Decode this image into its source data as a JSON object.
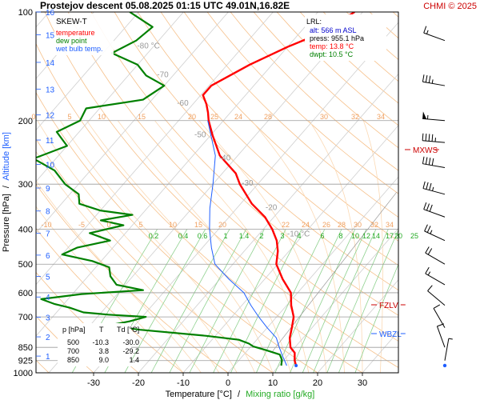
{
  "header": {
    "title": "Prostejov   descent   05.08.2025 01:15 UTC   49.01N,16.82E",
    "credit": "CHMI © 2025"
  },
  "legend": {
    "heading": "SKEW-T",
    "items": [
      {
        "label": "temperature",
        "color": "#ff0000"
      },
      {
        "label": "dew point",
        "color": "#008000"
      },
      {
        "label": "wet bulb temp.",
        "color": "#1f5fff"
      }
    ]
  },
  "lrl_box": {
    "heading": "LRL:",
    "alt": "alt: 566 m ASL",
    "press": "press: 955.1 hPa",
    "temp": "temp: 13.8 °C",
    "dwpt": "dwpt: 10.5 °C",
    "alt_color": "#0000cc",
    "press_color": "#000000",
    "temp_color": "#ff0000",
    "dwpt_color": "#008000"
  },
  "levels": [
    {
      "name": "MXWS",
      "color": "#cc0000"
    },
    {
      "name": "FZLV",
      "color": "#cc0000"
    },
    {
      "name": "WBZL",
      "color": "#1f5fff"
    }
  ],
  "table": {
    "headers": [
      "p [hPa]",
      "T",
      "Td [°C]"
    ],
    "rows": [
      [
        "500",
        "-10.3",
        "-30.0"
      ],
      [
        "700",
        "3.8",
        "-29.2"
      ],
      [
        "850",
        "9.0",
        "1.4"
      ]
    ]
  },
  "axes": {
    "xlabel_temp": "Temperature [°C]",
    "xlabel_sep": "/",
    "xlabel_mix": "Mixing ratio [g/kg]",
    "ylabel_press": "Pressure [hPa]",
    "ylabel_sep": "/",
    "ylabel_alt": "Altitude [km]"
  },
  "chart_data": {
    "type": "line",
    "x_ticks": [
      "-30",
      "-20",
      "-10",
      "0",
      "10",
      "20",
      "30"
    ],
    "xlim": [
      -38,
      42
    ],
    "pressure_ticks": [
      "100",
      "200",
      "300",
      "400",
      "500",
      "600",
      "700",
      "850",
      "925",
      "1000"
    ],
    "altitude_ticks": [
      "1",
      "2",
      "3",
      "4",
      "5",
      "6",
      "7",
      "8",
      "9",
      "10",
      "11",
      "12",
      "13",
      "14",
      "15",
      "16"
    ],
    "isotherm_labels": [
      "-80 °C",
      "-70",
      "-60",
      "-50",
      "-40",
      "-30",
      "-20",
      "-10 °C"
    ],
    "mixing_ratio_labels": [
      "0.2",
      "0.4",
      "0.6",
      "1",
      "1.4",
      "2",
      "3",
      "4",
      "6",
      "8",
      "10",
      "12",
      "14",
      "17",
      "20",
      "25"
    ],
    "adiabat_labels_top": [
      "0",
      "5",
      "10",
      "15",
      "20",
      "25",
      "24",
      "28",
      "30",
      "32",
      "34"
    ],
    "adiabat_labels_mid": [
      "-10",
      "-5",
      "0",
      "5",
      "10",
      "15",
      "20",
      "22",
      "24",
      "26",
      "28",
      "30",
      "32",
      "34"
    ],
    "series": [
      {
        "name": "temperature",
        "color": "#ff0000",
        "points": [
          [
            100,
            -41.8
          ],
          [
            115,
            -45.5
          ],
          [
            125,
            -50
          ],
          [
            140,
            -55
          ],
          [
            160,
            -59.5
          ],
          [
            170,
            -59.5
          ],
          [
            180,
            -57
          ],
          [
            190,
            -55
          ],
          [
            200,
            -53.3
          ],
          [
            220,
            -49.5
          ],
          [
            250,
            -44
          ],
          [
            280,
            -37
          ],
          [
            300,
            -34
          ],
          [
            340,
            -27.5
          ],
          [
            370,
            -22
          ],
          [
            400,
            -18
          ],
          [
            430,
            -14.8
          ],
          [
            460,
            -12.5
          ],
          [
            500,
            -10.3
          ],
          [
            550,
            -6
          ],
          [
            600,
            -1.5
          ],
          [
            650,
            1
          ],
          [
            700,
            3.8
          ],
          [
            750,
            5.5
          ],
          [
            800,
            7
          ],
          [
            850,
            9
          ],
          [
            880,
            11
          ],
          [
            925,
            12.5
          ],
          [
            955,
            13.8
          ]
        ]
      },
      {
        "name": "dew point",
        "color": "#008000",
        "points": [
          [
            100,
            -92
          ],
          [
            110,
            -84
          ],
          [
            120,
            -85
          ],
          [
            130,
            -88
          ],
          [
            140,
            -80
          ],
          [
            150,
            -76
          ],
          [
            160,
            -70
          ],
          [
            175,
            -72
          ],
          [
            185,
            -83
          ],
          [
            200,
            -82
          ],
          [
            215,
            -85
          ],
          [
            235,
            -80
          ],
          [
            255,
            -85
          ],
          [
            275,
            -78
          ],
          [
            300,
            -73
          ],
          [
            320,
            -68
          ],
          [
            340,
            -66
          ],
          [
            355,
            -60
          ],
          [
            365,
            -52
          ],
          [
            378,
            -58
          ],
          [
            390,
            -52
          ],
          [
            410,
            -58
          ],
          [
            430,
            -52
          ],
          [
            450,
            -58
          ],
          [
            470,
            -60
          ],
          [
            490,
            -52
          ],
          [
            510,
            -47
          ],
          [
            540,
            -45
          ],
          [
            570,
            -42
          ],
          [
            590,
            -35
          ],
          [
            605,
            -48
          ],
          [
            625,
            -56
          ],
          [
            645,
            -52
          ],
          [
            660,
            -48
          ],
          [
            680,
            -44
          ],
          [
            690,
            -38
          ],
          [
            700,
            -29.2
          ],
          [
            720,
            -32
          ],
          [
            740,
            -36
          ],
          [
            760,
            -28
          ],
          [
            790,
            -12
          ],
          [
            810,
            -4
          ],
          [
            830,
            -1
          ],
          [
            845,
            0.5
          ],
          [
            850,
            1.4
          ],
          [
            865,
            4
          ],
          [
            890,
            8
          ],
          [
            920,
            9.5
          ],
          [
            955,
            10.5
          ]
        ]
      },
      {
        "name": "wet bulb temp.",
        "color": "#1f5fff",
        "points": [
          [
            200,
            -53.5
          ],
          [
            250,
            -45
          ],
          [
            300,
            -40
          ],
          [
            350,
            -36
          ],
          [
            400,
            -32
          ],
          [
            450,
            -28
          ],
          [
            500,
            -24
          ],
          [
            550,
            -18
          ],
          [
            600,
            -12
          ],
          [
            650,
            -8
          ],
          [
            700,
            -4
          ],
          [
            750,
            0
          ],
          [
            800,
            4
          ],
          [
            850,
            6.5
          ],
          [
            900,
            9
          ],
          [
            955,
            11.7
          ]
        ]
      }
    ],
    "wind_profile": [
      {
        "p": 120,
        "dir": 290,
        "spd": 15
      },
      {
        "p": 160,
        "dir": 280,
        "spd": 35
      },
      {
        "p": 200,
        "dir": 275,
        "spd": 55
      },
      {
        "p": 230,
        "dir": 275,
        "spd": 45
      },
      {
        "p": 270,
        "dir": 280,
        "spd": 40
      },
      {
        "p": 320,
        "dir": 285,
        "spd": 35
      },
      {
        "p": 370,
        "dir": 290,
        "spd": 30
      },
      {
        "p": 430,
        "dir": 295,
        "spd": 25
      },
      {
        "p": 500,
        "dir": 300,
        "spd": 20
      },
      {
        "p": 570,
        "dir": 300,
        "spd": 15
      },
      {
        "p": 650,
        "dir": 310,
        "spd": 10
      },
      {
        "p": 750,
        "dir": 330,
        "spd": 10
      },
      {
        "p": 850,
        "dir": 340,
        "spd": 10
      },
      {
        "p": 925,
        "dir": 10,
        "spd": 5
      }
    ],
    "grid": true
  }
}
